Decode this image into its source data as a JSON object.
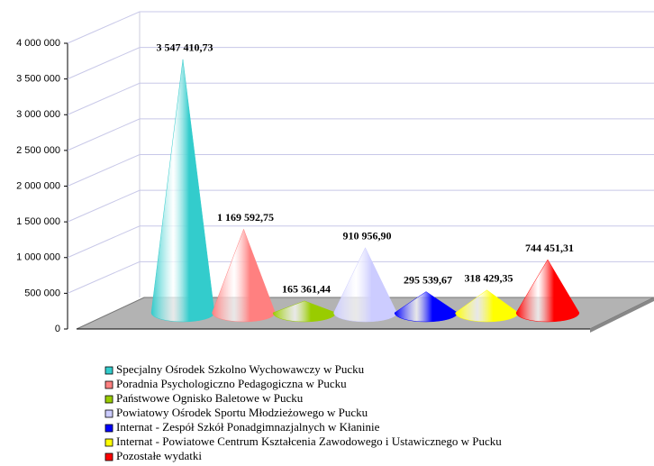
{
  "chart_data": {
    "type": "cone",
    "categories": [
      "Specjalny Ośrodek Szkolno Wychowawczy w Pucku",
      "Poradnia Psychologiczno Pedagogiczna w Pucku",
      "Państwowe Ognisko Baletowe w Pucku",
      "Powiatowy Ośrodek Sportu Młodzieżowego w Pucku",
      "Internat - Zespół Szkół Ponadgimnazjalnych w Kłaninie",
      "Internat - Powiatowe Centrum Kształcenia Zawodowego i Ustawicznego w Pucku",
      "Pozostałe wydatki"
    ],
    "values": [
      3547410.73,
      1169592.75,
      165361.44,
      910956.9,
      295539.67,
      318429.35,
      744451.31
    ],
    "value_labels": [
      "3 547 410,73",
      "1 169 592,75",
      "165 361,44",
      "910 956,90",
      "295 539,67",
      "318 429,35",
      "744 451,31"
    ],
    "colors": [
      "#33cccc",
      "#ff8080",
      "#99cc00",
      "#ccccff",
      "#0000ff",
      "#ffff00",
      "#ff0000"
    ],
    "ylim": [
      0,
      4000000
    ],
    "yticks": [
      0,
      {
        "value": 500000,
        "label": "500 000"
      },
      {
        "value": 1000000,
        "label": "1 000 000"
      },
      {
        "value": 1500000,
        "label": "1 500 000"
      },
      {
        "value": 2000000,
        "label": "2 000 000"
      },
      {
        "value": 2500000,
        "label": "2 500 000"
      },
      {
        "value": 3000000,
        "label": "3 000 000"
      },
      {
        "value": 3500000,
        "label": "3 500 000"
      },
      {
        "value": 4000000,
        "label": "4 000 000"
      }
    ],
    "grid": true,
    "legend": "bottom"
  }
}
